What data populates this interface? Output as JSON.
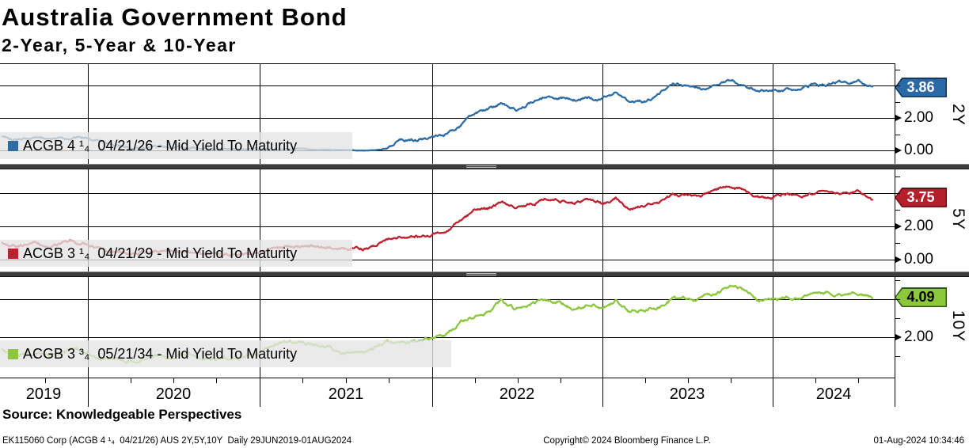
{
  "header": {
    "title": "Australia Government Bond",
    "subtitle": "2-Year, 5-Year & 10-Year"
  },
  "colors": {
    "blue_line": "#2e6da4",
    "blue_flag": "#2a69a5",
    "blue_flag_border": "#16365c",
    "red_line": "#be2130",
    "red_flag": "#b51f2c",
    "red_flag_border": "#6e0d18",
    "green_line": "#8dc63f",
    "green_flag": "#8cc83c",
    "green_flag_border": "#2f5b10",
    "grid": "#000000",
    "divider": "#3c3c3c",
    "legend_band": "#e8e8e8"
  },
  "x_axis": {
    "year_labels": [
      "2019",
      "2020",
      "2021",
      "2022",
      "2023",
      "2024"
    ],
    "range": "29JUN2019-01AUG2024"
  },
  "chart_data": [
    {
      "type": "line",
      "name": "2Y",
      "axis_label": "2Y",
      "legend_label": "ACGB 4 ¹₄  04/21/26 - Mid Yield To Maturity",
      "legend_prefix": "ACGB 4 ",
      "legend_frac_num": "1",
      "legend_frac_den": "4",
      "legend_rest": "  04/21/26 - Mid Yield To Maturity",
      "color": "#2e6da4",
      "flag_fill": "#2a69a5",
      "flag_border": "#16365c",
      "flag_text_color": "#ffffff",
      "last_price": "3.86",
      "y_tick_labels": [
        "2.00",
        "0.00"
      ],
      "y_tick_values": [
        2.0,
        0.0
      ],
      "y_gridline_values": [
        4.0,
        2.0,
        0.0
      ],
      "ylim": [
        -0.83,
        5.37
      ],
      "x_start": "2019-07",
      "x_end": "2024-08",
      "frequency": "monthly",
      "values": [
        0.9,
        0.78,
        0.8,
        0.8,
        0.76,
        0.8,
        0.72,
        0.55,
        0.28,
        0.22,
        0.24,
        0.25,
        0.25,
        0.24,
        0.18,
        0.12,
        0.09,
        0.08,
        0.08,
        0.11,
        0.07,
        0.05,
        0.04,
        0.03,
        0.02,
        0.01,
        0.01,
        0.1,
        0.62,
        0.6,
        0.82,
        1.02,
        1.45,
        2.15,
        2.45,
        2.75,
        2.55,
        2.95,
        3.3,
        3.3,
        3.1,
        3.3,
        3.1,
        3.5,
        2.95,
        3.0,
        3.35,
        4.0,
        3.9,
        3.8,
        4.05,
        4.35,
        4.1,
        3.75,
        3.7,
        3.75,
        3.78,
        4.05,
        4.05,
        4.12,
        4.2,
        3.86
      ]
    },
    {
      "type": "line",
      "name": "5Y",
      "axis_label": "5Y",
      "legend_label": "ACGB 3 ¹₄  04/21/29 - Mid Yield To Maturity",
      "legend_prefix": "ACGB 3 ",
      "legend_frac_num": "1",
      "legend_frac_den": "4",
      "legend_rest": "  04/21/29 - Mid Yield To Maturity",
      "color": "#be2130",
      "flag_fill": "#b51f2c",
      "flag_border": "#6e0d18",
      "flag_text_color": "#ffffff",
      "last_price": "3.75",
      "y_tick_labels": [
        "2.00",
        "0.00"
      ],
      "y_tick_values": [
        2.0,
        0.0
      ],
      "y_gridline_values": [
        4.0,
        2.0,
        0.0
      ],
      "ylim": [
        -0.81,
        5.43
      ],
      "x_start": "2019-07",
      "x_end": "2024-08",
      "frequency": "monthly",
      "values": [
        1.05,
        0.85,
        0.9,
        0.85,
        0.92,
        1.02,
        0.88,
        0.62,
        0.48,
        0.45,
        0.45,
        0.44,
        0.42,
        0.45,
        0.36,
        0.27,
        0.28,
        0.38,
        0.44,
        0.78,
        0.82,
        0.77,
        0.8,
        0.76,
        0.64,
        0.6,
        0.72,
        1.12,
        1.3,
        1.38,
        1.58,
        1.85,
        2.35,
        2.88,
        3.05,
        3.55,
        3.05,
        3.35,
        3.7,
        3.7,
        3.4,
        3.62,
        3.4,
        3.72,
        3.15,
        3.22,
        3.48,
        4.0,
        3.95,
        3.92,
        4.18,
        4.55,
        4.25,
        3.82,
        3.8,
        3.92,
        3.85,
        4.12,
        4.1,
        4.05,
        4.22,
        3.75
      ]
    },
    {
      "type": "line",
      "name": "10Y",
      "axis_label": "10Y",
      "legend_label": "ACGB 3 ³₄  05/21/34 - Mid Yield To Maturity",
      "legend_prefix": "ACGB 3 ",
      "legend_frac_num": "3",
      "legend_frac_den": "4",
      "legend_rest": "  05/21/34 - Mid Yield To Maturity",
      "color": "#8dc63f",
      "flag_fill": "#8cc83c",
      "flag_border": "#2f5b10",
      "flag_text_color": "#000000",
      "last_price": "4.09",
      "y_tick_labels": [
        "2.00"
      ],
      "y_tick_values": [
        2.0
      ],
      "y_gridline_values": [
        4.0,
        2.0
      ],
      "ylim": [
        0.0,
        5.17
      ],
      "x_start": "2019-07",
      "x_end": "2024-08",
      "frequency": "monthly",
      "values": [
        1.32,
        1.1,
        1.0,
        1.1,
        1.12,
        1.28,
        1.12,
        0.9,
        0.85,
        0.9,
        0.9,
        0.9,
        0.85,
        0.92,
        0.88,
        0.78,
        0.9,
        1.0,
        1.12,
        1.65,
        1.78,
        1.7,
        1.62,
        1.52,
        1.2,
        1.2,
        1.32,
        1.82,
        1.8,
        1.68,
        1.92,
        2.18,
        2.72,
        3.12,
        3.38,
        3.95,
        3.45,
        3.62,
        3.92,
        3.95,
        3.6,
        3.9,
        3.58,
        3.88,
        3.32,
        3.42,
        3.62,
        4.02,
        4.05,
        4.12,
        4.32,
        4.78,
        4.5,
        4.02,
        4.05,
        4.18,
        4.05,
        4.32,
        4.32,
        4.22,
        4.38,
        4.09
      ]
    }
  ],
  "source_line": "Source: Knowledgeable Perspectives",
  "footer": {
    "left": "EK115060 Corp (ACGB 4 ¹₄  04/21/26) AUS 2Y,5Y,10Y  Daily 29JUN2019-01AUG2024",
    "center": "Copyright© 2024 Bloomberg Finance L.P.",
    "right": "01-Aug-2024 10:34:46"
  }
}
